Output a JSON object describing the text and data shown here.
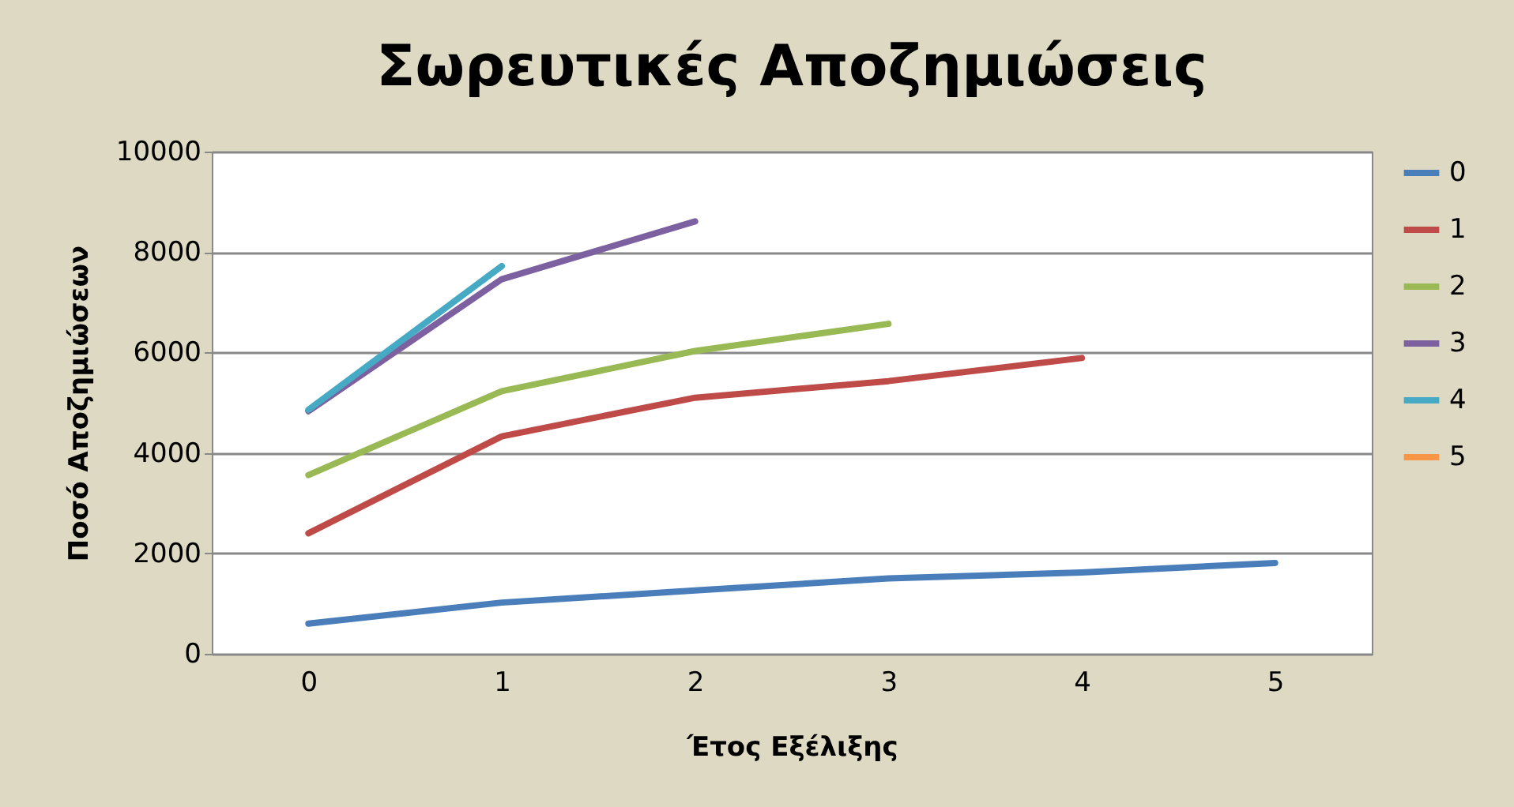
{
  "chart_data": {
    "type": "line",
    "title": "Σωρευτικές Αποζημιώσεις",
    "xlabel": "Έτος Εξέλιξης",
    "ylabel": "Ποσό Αποζημιώσεων",
    "categories": [
      "0",
      "1",
      "2",
      "3",
      "4",
      "5"
    ],
    "series": [
      {
        "name": "0",
        "color": "#4a7ebb",
        "values": [
          600,
          1020,
          1260,
          1500,
          1620,
          1810
        ]
      },
      {
        "name": "1",
        "color": "#be4b48",
        "values": [
          2400,
          4330,
          5100,
          5430,
          5890,
          null
        ]
      },
      {
        "name": "2",
        "color": "#98b954",
        "values": [
          3560,
          5230,
          6030,
          6570,
          null,
          null
        ]
      },
      {
        "name": "3",
        "color": "#7d60a0",
        "values": [
          4830,
          7460,
          8610,
          null,
          null,
          null
        ]
      },
      {
        "name": "4",
        "color": "#46aac5",
        "values": [
          4860,
          7720,
          null,
          null,
          null,
          null
        ]
      },
      {
        "name": "5",
        "color": "#f79646",
        "values": [
          null,
          null,
          null,
          null,
          null,
          null
        ]
      }
    ],
    "ylim": [
      0,
      10000
    ],
    "yticks": [
      0,
      2000,
      4000,
      6000,
      8000,
      10000
    ],
    "grid": "y",
    "legend": "right",
    "marker": "none",
    "line_style": "solid"
  }
}
